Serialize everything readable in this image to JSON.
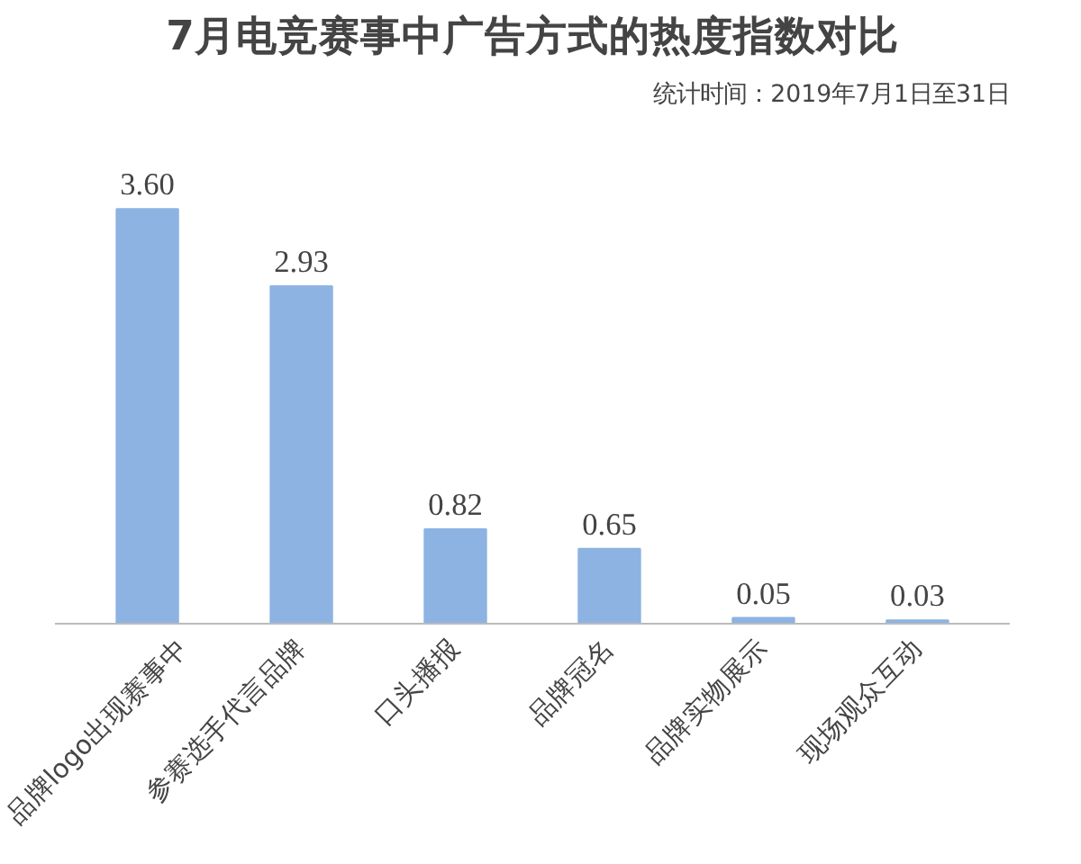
{
  "chart_data": {
    "type": "bar",
    "title": "7月电竞赛事中广告方式的热度指数对比",
    "subtitle": "统计时间：2019年7月1日至31日",
    "categories": [
      "品牌logo出现赛事中",
      "参赛选手代言品牌",
      "口头播报",
      "品牌冠名",
      "品牌实物展示",
      "现场观众互动"
    ],
    "values": [
      3.6,
      2.93,
      0.82,
      0.65,
      0.05,
      0.03
    ],
    "value_labels": [
      "3.60",
      "2.93",
      "0.82",
      "0.65",
      "0.05",
      "0.03"
    ],
    "color": "#8db3e2",
    "grid": false
  }
}
